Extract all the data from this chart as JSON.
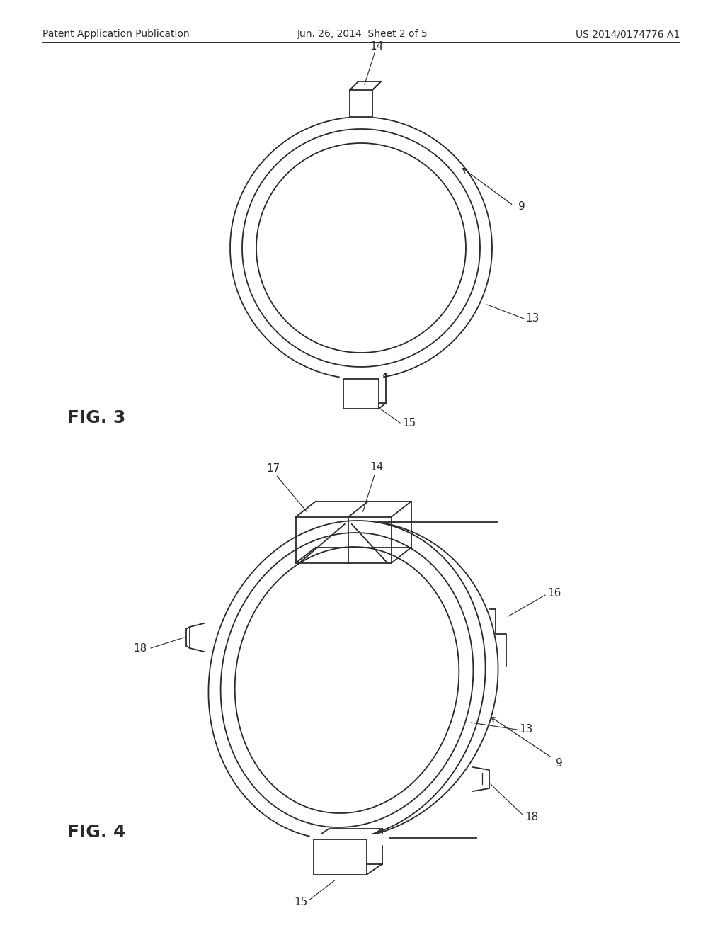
{
  "bg_color": "#ffffff",
  "header_left": "Patent Application Publication",
  "header_mid": "Jun. 26, 2014  Sheet 2 of 5",
  "header_right": "US 2014/0174776 A1",
  "line_color": "#2a2a2a",
  "fig3_label": "FIG. 3",
  "fig4_label": "FIG. 4",
  "annotation_fontsize": 11
}
